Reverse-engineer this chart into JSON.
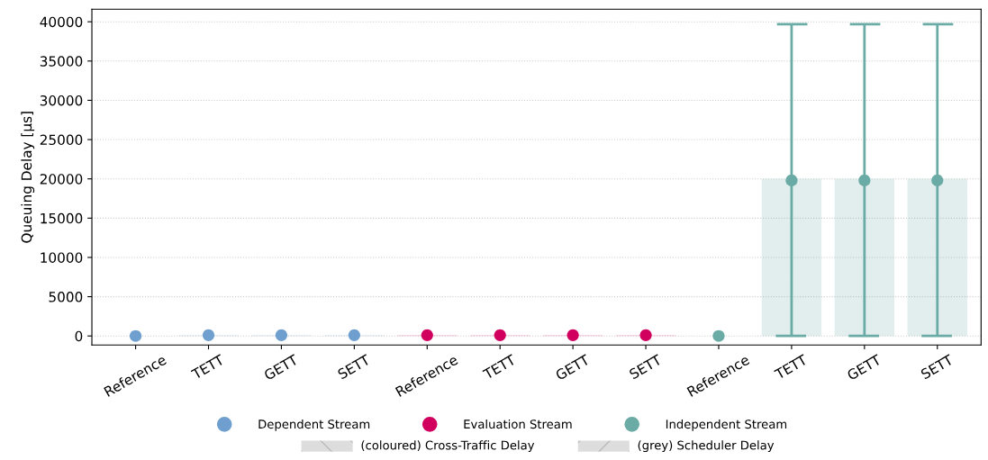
{
  "chart_data": {
    "type": "bar",
    "ylabel": "Queuing Delay [µs]",
    "categories": [
      "Reference",
      "TETT",
      "GETT",
      "SETT",
      "Reference",
      "TETT",
      "GETT",
      "SETT",
      "Reference",
      "TETT",
      "GETT",
      "SETT"
    ],
    "series": [
      {
        "color": "#6f9fcf",
        "values": [
          0,
          100,
          100,
          100,
          null,
          null,
          null,
          null,
          null,
          null,
          null,
          null
        ]
      },
      {
        "color": "#d1005e",
        "values": [
          null,
          null,
          null,
          null,
          100,
          100,
          100,
          100,
          null,
          null,
          null,
          null
        ]
      },
      {
        "color": "#6aaca5",
        "values": [
          null,
          null,
          null,
          null,
          null,
          null,
          null,
          null,
          0,
          20000,
          20000,
          20000
        ]
      },
      {
        "name": "Dependent Stream",
        "type": "scatter",
        "color": "#6f9fcf",
        "values": [
          0,
          100,
          100,
          100,
          null,
          null,
          null,
          null,
          null,
          null,
          null,
          null
        ]
      },
      {
        "name": "Evaluation Stream",
        "type": "scatter",
        "color": "#d1005e",
        "values": [
          null,
          null,
          null,
          null,
          100,
          100,
          100,
          100,
          null,
          null,
          null,
          null
        ]
      },
      {
        "name": "Independent Stream",
        "type": "scatter",
        "color": "#6aaca5",
        "values": [
          null,
          null,
          null,
          null,
          null,
          null,
          null,
          null,
          0,
          19800,
          19800,
          19800
        ],
        "errors": [
          null,
          null,
          null,
          null,
          null,
          null,
          null,
          null,
          null,
          [
            0,
            39700
          ],
          [
            0,
            39700
          ],
          [
            0,
            39700
          ]
        ]
      }
    ],
    "annotations": [
      "(coloured) Cross-Traffic Delay",
      "(grey) Scheduler Delay"
    ],
    "ylim": [
      -1150,
      41600
    ],
    "yticks": [
      0,
      5000,
      10000,
      15000,
      20000,
      25000,
      30000,
      35000,
      40000
    ],
    "grid": "y",
    "legend": "bottom",
    "marker": "circle"
  }
}
